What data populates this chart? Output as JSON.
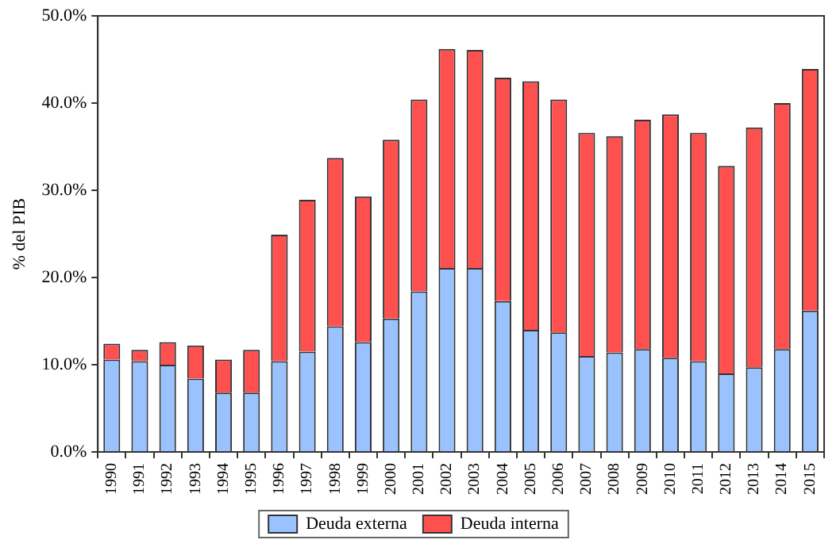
{
  "chart_data": {
    "type": "bar",
    "stacked": true,
    "ylabel": "% del PIB",
    "categories": [
      "1990",
      "1991",
      "1992",
      "1993",
      "1994",
      "1995",
      "1996",
      "1997",
      "1998",
      "1999",
      "2000",
      "2001",
      "2002",
      "2003",
      "2004",
      "2005",
      "2006",
      "2007",
      "2008",
      "2009",
      "2010",
      "2011",
      "2012",
      "2013",
      "2014",
      "2015"
    ],
    "series": [
      {
        "name": "Deuda externa",
        "color": "#99c2ff",
        "values": [
          10.6,
          10.4,
          10.0,
          8.4,
          6.8,
          6.8,
          10.4,
          11.5,
          14.4,
          12.6,
          15.3,
          18.4,
          21.1,
          21.1,
          17.3,
          14.0,
          13.7,
          11.0,
          11.4,
          11.8,
          10.8,
          10.4,
          9.0,
          9.7,
          11.8,
          16.2
        ]
      },
      {
        "name": "Deuda interna",
        "color": "#ff5050",
        "values": [
          1.8,
          1.3,
          2.6,
          3.8,
          3.8,
          4.9,
          14.5,
          17.4,
          19.3,
          16.7,
          20.5,
          22.0,
          25.1,
          25.0,
          25.6,
          28.5,
          26.7,
          25.6,
          24.8,
          26.3,
          27.9,
          26.2,
          23.8,
          27.5,
          28.2,
          27.7
        ]
      }
    ],
    "ylim": [
      0,
      50
    ],
    "yticks": [
      {
        "value": 0,
        "label": "0.0%"
      },
      {
        "value": 10,
        "label": "10.0%"
      },
      {
        "value": 20,
        "label": "20.0%"
      },
      {
        "value": 30,
        "label": "30.0%"
      },
      {
        "value": 40,
        "label": "40.0%"
      },
      {
        "value": 50,
        "label": "50.0%"
      }
    ],
    "grid": false,
    "legend": "bottom"
  }
}
